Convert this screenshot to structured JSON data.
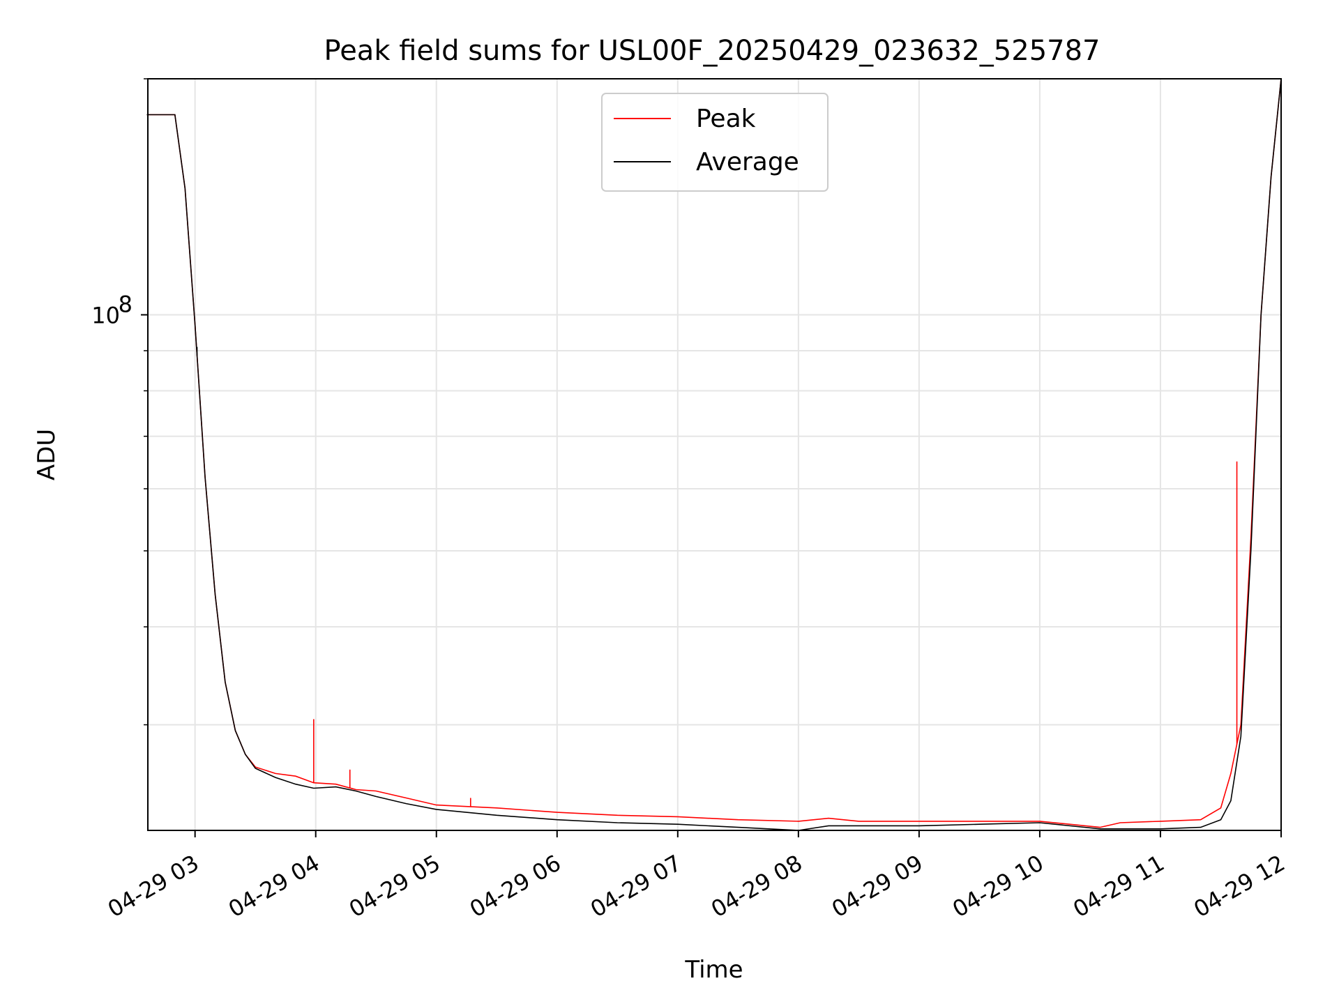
{
  "chart_data": {
    "type": "line",
    "title": "Peak field sums for USL00F_20250429_023632_525787",
    "xlabel": "Time",
    "ylabel": "ADU",
    "y_scale": "log",
    "ylim": [
      22000000,
      200000000
    ],
    "xlim": [
      "2025-04-29 02:36:32",
      "2025-04-29 12:00:00"
    ],
    "x_ticks": [
      {
        "value": "2025-04-29 03:00",
        "label": "04-29 03"
      },
      {
        "value": "2025-04-29 04:00",
        "label": "04-29 04"
      },
      {
        "value": "2025-04-29 05:00",
        "label": "04-29 05"
      },
      {
        "value": "2025-04-29 06:00",
        "label": "04-29 06"
      },
      {
        "value": "2025-04-29 07:00",
        "label": "04-29 07"
      },
      {
        "value": "2025-04-29 08:00",
        "label": "04-29 08"
      },
      {
        "value": "2025-04-29 09:00",
        "label": "04-29 09"
      },
      {
        "value": "2025-04-29 10:00",
        "label": "04-29 10"
      },
      {
        "value": "2025-04-29 11:00",
        "label": "04-29 11"
      },
      {
        "value": "2025-04-29 12:00",
        "label": "04-29 12"
      }
    ],
    "y_major_tick": {
      "value": 100000000,
      "base": "10",
      "exp": "8"
    },
    "y_minor_ticks": [
      30000000,
      40000000,
      50000000,
      60000000,
      70000000,
      80000000,
      90000000,
      200000000
    ],
    "grid": true,
    "legend_position": "upper center",
    "series": [
      {
        "name": "Peak",
        "color": "#ff0000",
        "x": [
          "2025-04-29 02:36",
          "2025-04-29 02:50",
          "2025-04-29 02:55",
          "2025-04-29 03:00",
          "2025-04-29 03:05",
          "2025-04-29 03:10",
          "2025-04-29 03:15",
          "2025-04-29 03:20",
          "2025-04-29 03:25",
          "2025-04-29 03:30",
          "2025-04-29 03:40",
          "2025-04-29 03:50",
          "2025-04-29 03:59",
          "2025-04-29 04:10",
          "2025-04-29 04:20",
          "2025-04-29 04:30",
          "2025-04-29 04:45",
          "2025-04-29 05:00",
          "2025-04-29 05:30",
          "2025-04-29 06:00",
          "2025-04-29 06:30",
          "2025-04-29 07:00",
          "2025-04-29 07:30",
          "2025-04-29 08:00",
          "2025-04-29 08:15",
          "2025-04-29 08:30",
          "2025-04-29 09:00",
          "2025-04-29 09:30",
          "2025-04-29 10:00",
          "2025-04-29 10:30",
          "2025-04-29 10:40",
          "2025-04-29 11:00",
          "2025-04-29 11:20",
          "2025-04-29 11:30",
          "2025-04-29 11:35",
          "2025-04-29 11:40",
          "2025-04-29 11:45",
          "2025-04-29 11:50",
          "2025-04-29 11:55",
          "2025-04-29 12:00"
        ],
        "y": [
          180000000,
          180000000,
          145000000,
          97000000,
          62000000,
          44000000,
          34000000,
          29500000,
          27500000,
          26500000,
          26000000,
          25800000,
          25300000,
          25200000,
          24800000,
          24700000,
          24200000,
          23700000,
          23500000,
          23200000,
          23000000,
          22900000,
          22700000,
          22600000,
          22800000,
          22600000,
          22600000,
          22600000,
          22600000,
          22200000,
          22500000,
          22600000,
          22700000,
          23500000,
          26000000,
          30000000,
          52000000,
          100000000,
          150000000,
          200000000
        ]
      },
      {
        "name": "Average",
        "color": "#000000",
        "x": [
          "2025-04-29 02:36",
          "2025-04-29 02:50",
          "2025-04-29 02:55",
          "2025-04-29 03:00",
          "2025-04-29 03:05",
          "2025-04-29 03:10",
          "2025-04-29 03:15",
          "2025-04-29 03:20",
          "2025-04-29 03:25",
          "2025-04-29 03:30",
          "2025-04-29 03:40",
          "2025-04-29 03:50",
          "2025-04-29 03:59",
          "2025-04-29 04:10",
          "2025-04-29 04:20",
          "2025-04-29 04:30",
          "2025-04-29 04:45",
          "2025-04-29 05:00",
          "2025-04-29 05:30",
          "2025-04-29 06:00",
          "2025-04-29 06:30",
          "2025-04-29 07:00",
          "2025-04-29 07:30",
          "2025-04-29 08:00",
          "2025-04-29 08:15",
          "2025-04-29 08:30",
          "2025-04-29 09:00",
          "2025-04-29 09:30",
          "2025-04-29 10:00",
          "2025-04-29 10:30",
          "2025-04-29 10:40",
          "2025-04-29 11:00",
          "2025-04-29 11:20",
          "2025-04-29 11:30",
          "2025-04-29 11:35",
          "2025-04-29 11:40",
          "2025-04-29 11:45",
          "2025-04-29 11:50",
          "2025-04-29 11:55",
          "2025-04-29 12:00"
        ],
        "y": [
          180000000,
          180000000,
          145000000,
          97000000,
          62000000,
          44000000,
          34000000,
          29500000,
          27500000,
          26400000,
          25700000,
          25200000,
          24900000,
          25000000,
          24700000,
          24300000,
          23800000,
          23400000,
          23000000,
          22700000,
          22500000,
          22400000,
          22200000,
          22000000,
          22300000,
          22300000,
          22300000,
          22400000,
          22500000,
          22100000,
          22100000,
          22100000,
          22200000,
          22700000,
          24000000,
          29000000,
          50000000,
          100000000,
          150000000,
          200000000
        ]
      }
    ],
    "spikes": [
      {
        "series": "Peak",
        "x": "2025-04-29 03:59",
        "y": 30500000
      },
      {
        "series": "Peak",
        "x": "2025-04-29 04:17",
        "y": 26300000
      },
      {
        "series": "Peak",
        "x": "2025-04-29 05:17",
        "y": 24200000
      },
      {
        "series": "Peak",
        "x": "2025-04-29 11:38",
        "y": 65000000
      },
      {
        "series": "Average",
        "x": "2025-04-29 03:01",
        "y": 91000000
      }
    ]
  }
}
